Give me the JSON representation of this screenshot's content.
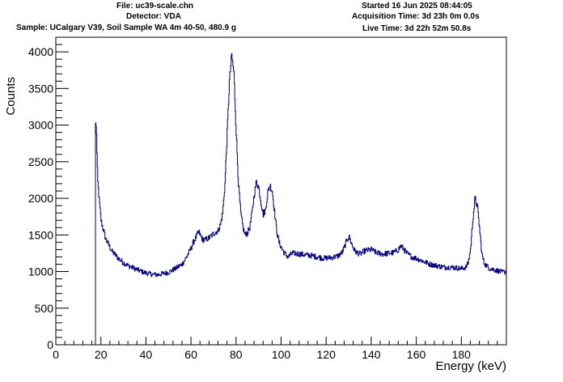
{
  "header": {
    "file": "File: uc39-scale.chn",
    "detector": "Detector: VDA",
    "sample": "Sample: UCalgary V39, Soil Sample WA 4m 40-50, 480.9 g",
    "started": "Started 16 Jun 2025 08:44:05",
    "acquisition_time": "Acquisition Time: 3d 23h 0m 0.0s",
    "live_time": "Live Time: 3d 22h 52m 50.8s"
  },
  "chart_data": {
    "type": "line",
    "title": "",
    "xlabel": "Energy (keV)",
    "ylabel": "Counts",
    "xlim": [
      0,
      200
    ],
    "ylim": [
      0,
      4200
    ],
    "xticks": [
      0,
      20,
      40,
      60,
      80,
      100,
      120,
      140,
      160,
      180
    ],
    "yticks": [
      0,
      500,
      1000,
      1500,
      2000,
      2500,
      3000,
      3500,
      4000
    ],
    "grid": false,
    "legend": "none",
    "line_color": "#000080",
    "series": [
      {
        "x": [
          17.6,
          18.0,
          18.2,
          18.5,
          19.0,
          20.0,
          22.0,
          25.0,
          28.0,
          30.0,
          32.0,
          35.0,
          38.0,
          40.0,
          42.0,
          45.0,
          48.0,
          50.0,
          53.0,
          56.0,
          58.0,
          60.0,
          61.0,
          62.0,
          63.0,
          63.5,
          64.0,
          65.0,
          66.0,
          68.0,
          70.0,
          72.0,
          73.0,
          74.0,
          75.0,
          76.0,
          77.0,
          78.0,
          79.0,
          80.0,
          81.0,
          82.0,
          83.0,
          84.0,
          85.0,
          86.0,
          87.0,
          88.0,
          89.0,
          90.0,
          91.0,
          92.0,
          93.0,
          94.0,
          95.0,
          96.0,
          97.0,
          98.0,
          99.0,
          100.0,
          101.0,
          102.0,
          103.0,
          105.0,
          108.0,
          110.0,
          113.0,
          116.0,
          119.0,
          122.0,
          125.0,
          127.0,
          128.0,
          129.0,
          130.0,
          131.0,
          132.0,
          133.0,
          135.0,
          137.0,
          140.0,
          142.0,
          145.0,
          148.0,
          150.0,
          152.0,
          153.0,
          154.0,
          155.0,
          156.0,
          158.0,
          160.0,
          163.0,
          166.0,
          169.0,
          172.0,
          175.0,
          178.0,
          180.0,
          182.0,
          183.0,
          184.0,
          185.0,
          186.0,
          187.0,
          188.0,
          189.0,
          190.0,
          192.0,
          195.0,
          198.0,
          200.0
        ],
        "y": [
          3030,
          2900,
          2600,
          2250,
          2050,
          1700,
          1450,
          1270,
          1170,
          1120,
          1080,
          1040,
          1000,
          980,
          965,
          955,
          975,
          990,
          1040,
          1100,
          1200,
          1320,
          1400,
          1460,
          1520,
          1540,
          1500,
          1440,
          1430,
          1460,
          1520,
          1560,
          1640,
          1800,
          2200,
          2900,
          3600,
          3950,
          3700,
          2900,
          2200,
          1800,
          1600,
          1500,
          1530,
          1600,
          1800,
          2050,
          2230,
          2150,
          1950,
          1780,
          1840,
          2080,
          2180,
          2100,
          1820,
          1550,
          1400,
          1330,
          1270,
          1230,
          1200,
          1250,
          1240,
          1230,
          1220,
          1200,
          1180,
          1190,
          1210,
          1260,
          1330,
          1420,
          1480,
          1400,
          1320,
          1270,
          1240,
          1280,
          1300,
          1260,
          1240,
          1250,
          1260,
          1300,
          1350,
          1320,
          1280,
          1240,
          1200,
          1180,
          1140,
          1100,
          1080,
          1060,
          1060,
          1050,
          1040,
          1060,
          1120,
          1300,
          1700,
          2000,
          1900,
          1600,
          1250,
          1120,
          1050,
          1020,
          990,
          1000
        ]
      }
    ]
  }
}
